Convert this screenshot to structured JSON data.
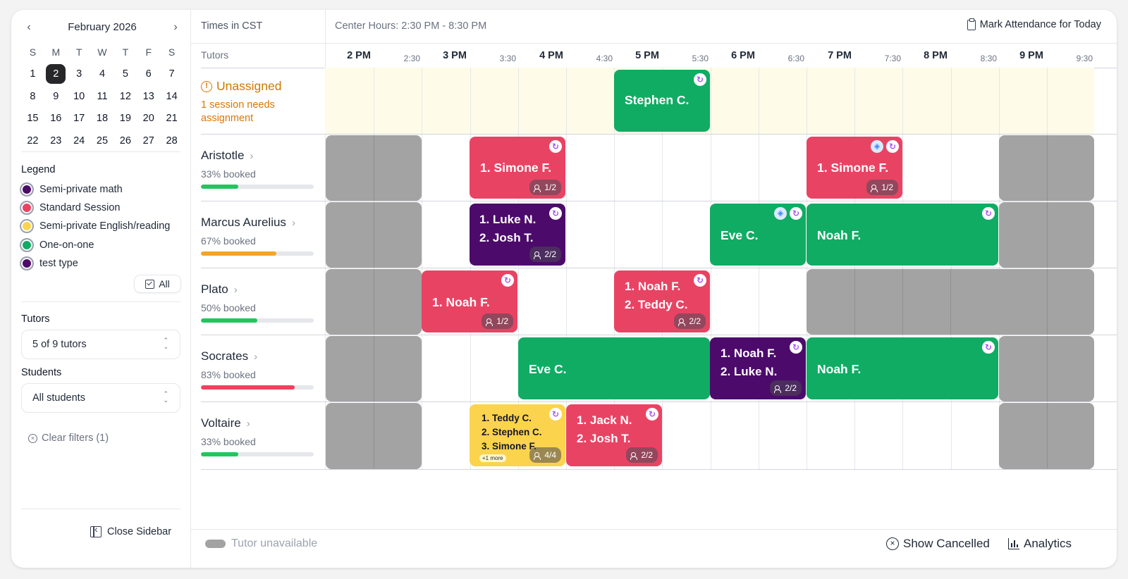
{
  "calendar": {
    "month_label": "February 2026",
    "weekdays": [
      "S",
      "M",
      "T",
      "W",
      "T",
      "F",
      "S"
    ],
    "weeks": [
      [
        "1",
        "2",
        "3",
        "4",
        "5",
        "6",
        "7"
      ],
      [
        "8",
        "9",
        "10",
        "11",
        "12",
        "13",
        "14"
      ],
      [
        "15",
        "16",
        "17",
        "18",
        "19",
        "20",
        "21"
      ],
      [
        "22",
        "23",
        "24",
        "25",
        "26",
        "27",
        "28"
      ]
    ],
    "selected_day": "2",
    "prev_icon": "chevron-left-icon",
    "next_icon": "chevron-right-icon"
  },
  "legend": {
    "title": "Legend",
    "items": [
      {
        "label": "Semi-private math",
        "color": "#4c0a6b"
      },
      {
        "label": "Standard Session",
        "color": "#e94364"
      },
      {
        "label": "Semi-private English/reading",
        "color": "#fcd34d"
      },
      {
        "label": "One-on-one",
        "color": "#10ac64"
      },
      {
        "label": "test type",
        "color": "#4c0a6b"
      }
    ],
    "all_button": "All"
  },
  "filters": {
    "tutors_label": "Tutors",
    "tutors_value": "5 of 9 tutors",
    "students_label": "Students",
    "students_value": "All students",
    "clear_filters": "Clear filters (1)"
  },
  "sidebar_footer": {
    "close_sidebar": "Close Sidebar"
  },
  "header": {
    "timezone": "Times in CST",
    "center_hours_label": "Center Hours:",
    "center_hours_value": "2:30 PM - 8:30 PM",
    "mark_attendance": "Mark Attendance for Today",
    "tutors_column": "Tutors",
    "hour_labels": [
      "2 PM",
      "3 PM",
      "4 PM",
      "5 PM",
      "6 PM",
      "7 PM",
      "8 PM",
      "9 PM"
    ],
    "half_labels": [
      "2:30",
      "3:30",
      "4:30",
      "5:30",
      "6:30",
      "7:30",
      "8:30",
      "9:30"
    ]
  },
  "unassigned": {
    "title": "Unassigned",
    "subtitle": "1 session needs assignment"
  },
  "tutors": [
    {
      "name": "Aristotle",
      "booked": "33% booked",
      "pct": 0.33,
      "bar_color": "#22c55e"
    },
    {
      "name": "Marcus Aurelius",
      "booked": "67% booked",
      "pct": 0.67,
      "bar_color": "#f5a524"
    },
    {
      "name": "Plato",
      "booked": "50% booked",
      "pct": 0.5,
      "bar_color": "#22c55e"
    },
    {
      "name": "Socrates",
      "booked": "83% booked",
      "pct": 0.83,
      "bar_color": "#f43f5e"
    },
    {
      "name": "Voltaire",
      "booked": "33% booked",
      "pct": 0.33,
      "bar_color": "#22c55e"
    }
  ],
  "sessions": {
    "unassigned_stephen": {
      "label": "Stephen C."
    },
    "aristotle_1": {
      "label": "1. Simone F.",
      "count": "1/2"
    },
    "aristotle_2": {
      "label": "1. Simone F.",
      "count": "1/2"
    },
    "marcus_1": {
      "line1": "1. Luke N.",
      "line2": "2. Josh T.",
      "count": "2/2"
    },
    "marcus_2": {
      "label": "Eve C."
    },
    "marcus_3": {
      "label": "Noah F."
    },
    "plato_1": {
      "label": "1. Noah F.",
      "count": "1/2"
    },
    "plato_2": {
      "line1": "1. Noah F.",
      "line2": "2. Teddy C.",
      "count": "2/2"
    },
    "socrates_1": {
      "label": "Eve C."
    },
    "socrates_2": {
      "line1": "1. Noah F.",
      "line2": "2. Luke N.",
      "count": "2/2"
    },
    "socrates_3": {
      "label": "Noah F."
    },
    "voltaire_1": {
      "line1": "1. Teddy C.",
      "line2": "2. Stephen C.",
      "line3": "3. Simone F.",
      "more": "+1 more",
      "count": "4/4"
    },
    "voltaire_2": {
      "line1": "1. Jack N.",
      "line2": "2. Josh T.",
      "count": "2/2"
    }
  },
  "footer": {
    "unavailable_legend": "Tutor unavailable",
    "show_cancelled": "Show Cancelled",
    "analytics": "Analytics"
  },
  "colors": {
    "standard": "#e94364",
    "one_on_one": "#10ac64",
    "semi_math": "#4c0a6b",
    "semi_english": "#fcd34d",
    "unavailable": "#a3a3a3"
  }
}
